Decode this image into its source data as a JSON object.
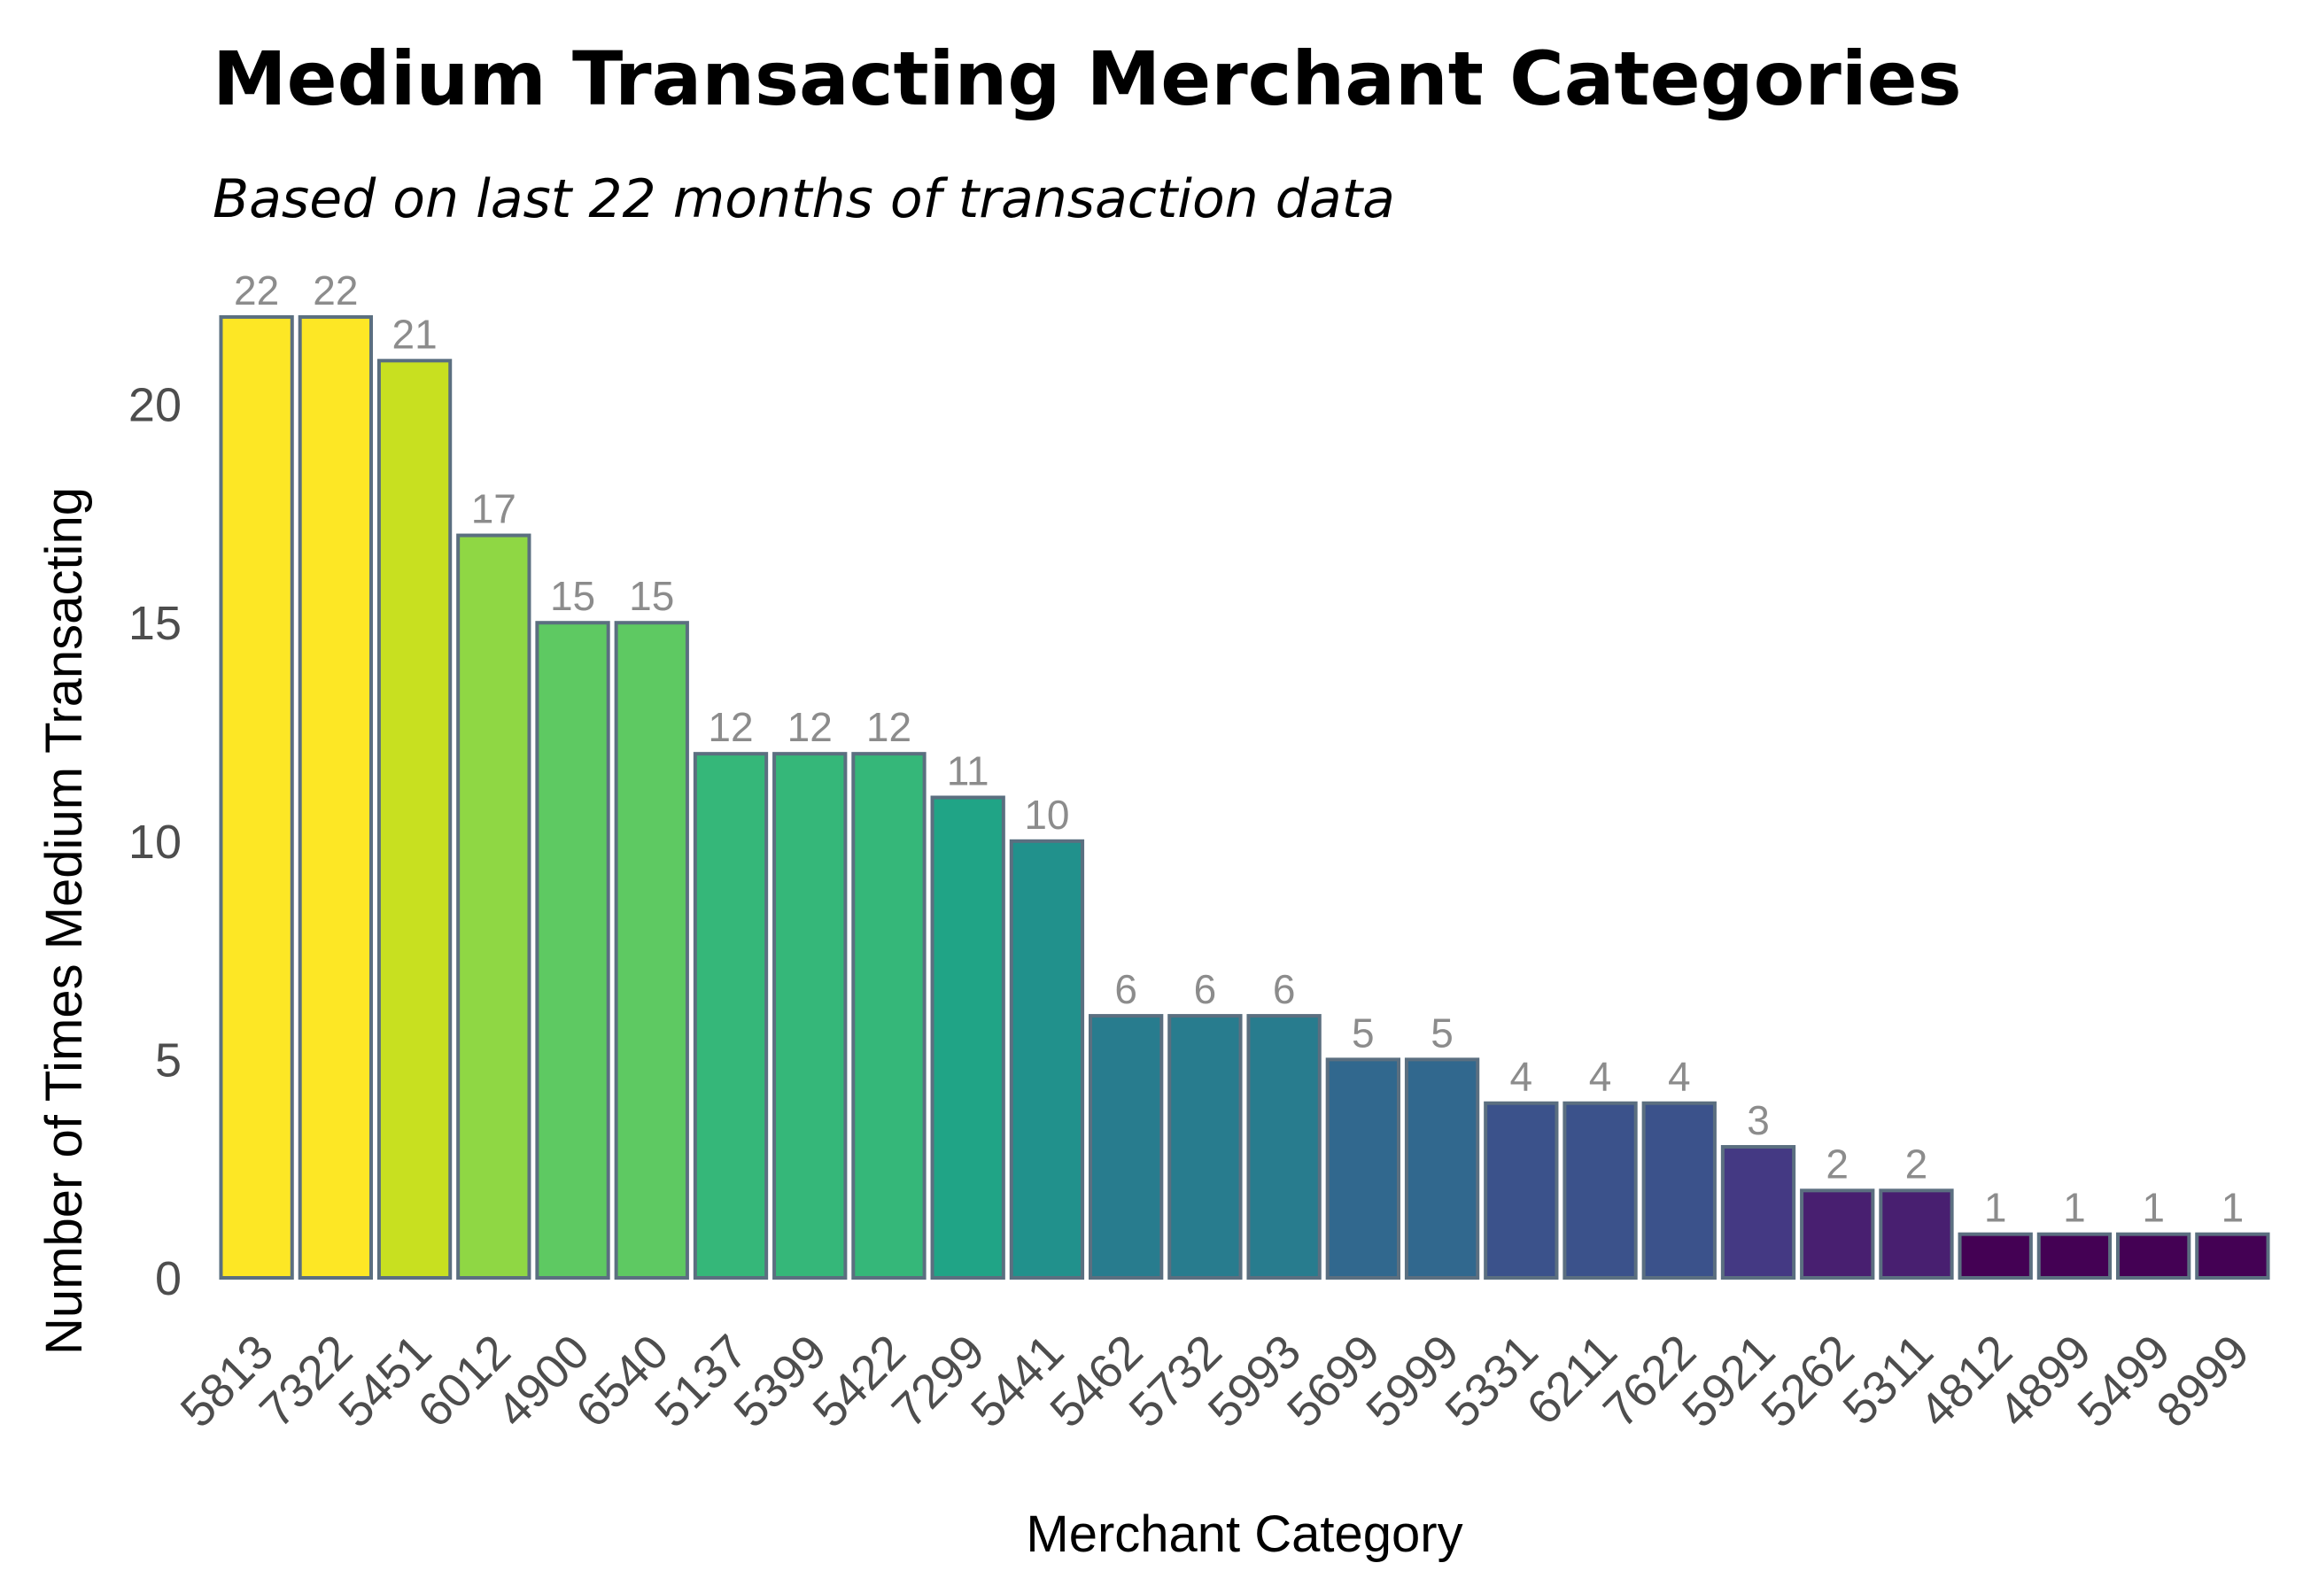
{
  "chart_data": {
    "type": "bar",
    "title": "Medium Transacting Merchant Categories",
    "subtitle": "Based on last 22 months of transaction data",
    "xlabel": "Merchant Category",
    "ylabel": "Number of Times Medium Transacting",
    "ylim": [
      0,
      22
    ],
    "yticks": [
      0,
      5,
      10,
      15,
      20
    ],
    "grid": false,
    "legend": "none",
    "categories": [
      "5813",
      "7322",
      "5451",
      "6012",
      "4900",
      "6540",
      "5137",
      "5399",
      "5422",
      "7299",
      "5441",
      "5462",
      "5732",
      "5993",
      "5699",
      "5999",
      "5331",
      "6211",
      "7622",
      "5921",
      "5262",
      "5311",
      "4812",
      "4899",
      "5499",
      "8999"
    ],
    "values": [
      22,
      22,
      21,
      17,
      15,
      15,
      12,
      12,
      12,
      11,
      10,
      6,
      6,
      6,
      5,
      5,
      4,
      4,
      4,
      3,
      2,
      2,
      1,
      1,
      1,
      1
    ],
    "bar_colors": [
      "#fde725",
      "#fde725",
      "#c8e020",
      "#8fd744",
      "#5ec962",
      "#5ec962",
      "#35b779",
      "#35b779",
      "#35b779",
      "#20a486",
      "#21918c",
      "#287c8e",
      "#287c8e",
      "#287c8e",
      "#31688e",
      "#31688e",
      "#3b528b",
      "#3b528b",
      "#3b528b",
      "#443983",
      "#481f70",
      "#481f70",
      "#440154",
      "#440154",
      "#440154",
      "#440154"
    ],
    "bar_outline_color": "#5b6f80"
  }
}
